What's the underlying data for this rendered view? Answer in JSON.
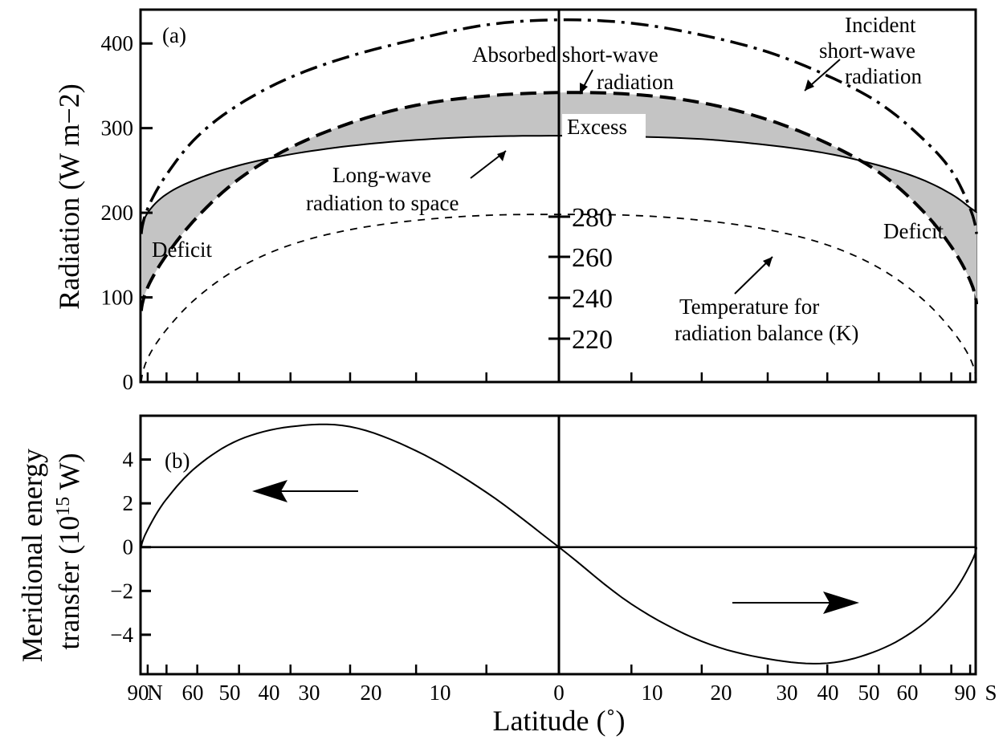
{
  "figure": {
    "xlabel": "Latitude (˚)",
    "latitude_ticks": [
      "90",
      "N",
      "60",
      "50",
      "40",
      "30",
      "20",
      "10",
      "0",
      "10",
      "20",
      "30",
      "40",
      "50",
      "60",
      "90",
      "S"
    ]
  },
  "chart_data": [
    {
      "type": "line",
      "panel_label": "(a)",
      "ylabel": "Radiation (W m−2)",
      "ylim": [
        0,
        440
      ],
      "yticks": [
        0,
        100,
        200,
        300,
        400
      ],
      "x_axis": "sin(latitude), 90 N to 90 S",
      "x": [
        -90,
        -80,
        -70,
        -60,
        -50,
        -40,
        -30,
        -20,
        -10,
        0,
        10,
        20,
        30,
        40,
        50,
        60,
        70,
        80,
        90
      ],
      "series": [
        {
          "name": "Incident short-wave radiation",
          "style": "dash-dot",
          "values": [
            175,
            205,
            245,
            290,
            328,
            360,
            385,
            405,
            422,
            428,
            424,
            410,
            390,
            362,
            330,
            290,
            250,
            205,
            175
          ]
        },
        {
          "name": "Absorbed short-wave radiation",
          "style": "dashed",
          "values": [
            84,
            112,
            150,
            195,
            240,
            277,
            306,
            327,
            338,
            342,
            340,
            330,
            310,
            282,
            248,
            205,
            160,
            120,
            92
          ]
        },
        {
          "name": "Long-wave radiation to space",
          "style": "solid",
          "values": [
            178,
            200,
            222,
            240,
            256,
            269,
            279,
            286,
            290,
            291,
            290,
            287,
            280,
            270,
            256,
            240,
            222,
            206,
            200
          ]
        },
        {
          "name": "Temperature for radiation balance (K)",
          "style": "thin-dashed",
          "values": [
            0,
            28,
            62,
            100,
            135,
            162,
            180,
            191,
            197,
            198,
            197,
            191,
            180,
            162,
            135,
            100,
            62,
            28,
            0
          ]
        }
      ],
      "annotations": [
        "Incident\nshort-wave\nradiation",
        "Absorbed short-wave\nradiation",
        "Excess",
        "Long-wave\nradiation to space",
        "Deficit",
        "Deficit",
        "Temperature for\nradiation balance (K)"
      ],
      "temperature_axis_ticks": [
        280,
        260,
        240,
        220
      ]
    },
    {
      "type": "line",
      "panel_label": "(b)",
      "ylabel_line1": "Meridional energy",
      "ylabel_line2_prefix": "transfer (10",
      "ylabel_exponent": "15",
      "ylabel_line2_suffix": " W)",
      "ylim": [
        -5.8,
        6.0
      ],
      "yticks": [
        4,
        2,
        0,
        -2,
        -4
      ],
      "ytick_labels": [
        "4",
        "2",
        "0",
        "−2",
        "−4"
      ],
      "x": [
        -90,
        -80,
        -70,
        -60,
        -50,
        -40,
        -30,
        -20,
        -10,
        0,
        10,
        20,
        30,
        40,
        50,
        60,
        70,
        80,
        90
      ],
      "series": [
        {
          "name": "Meridional energy transfer",
          "values": [
            0,
            0.8,
            2.2,
            3.7,
            4.9,
            5.5,
            5.5,
            4.4,
            2.5,
            0,
            -2.6,
            -4.3,
            -5.1,
            -5.3,
            -4.7,
            -3.6,
            -2.2,
            -0.8,
            0
          ]
        }
      ]
    }
  ]
}
